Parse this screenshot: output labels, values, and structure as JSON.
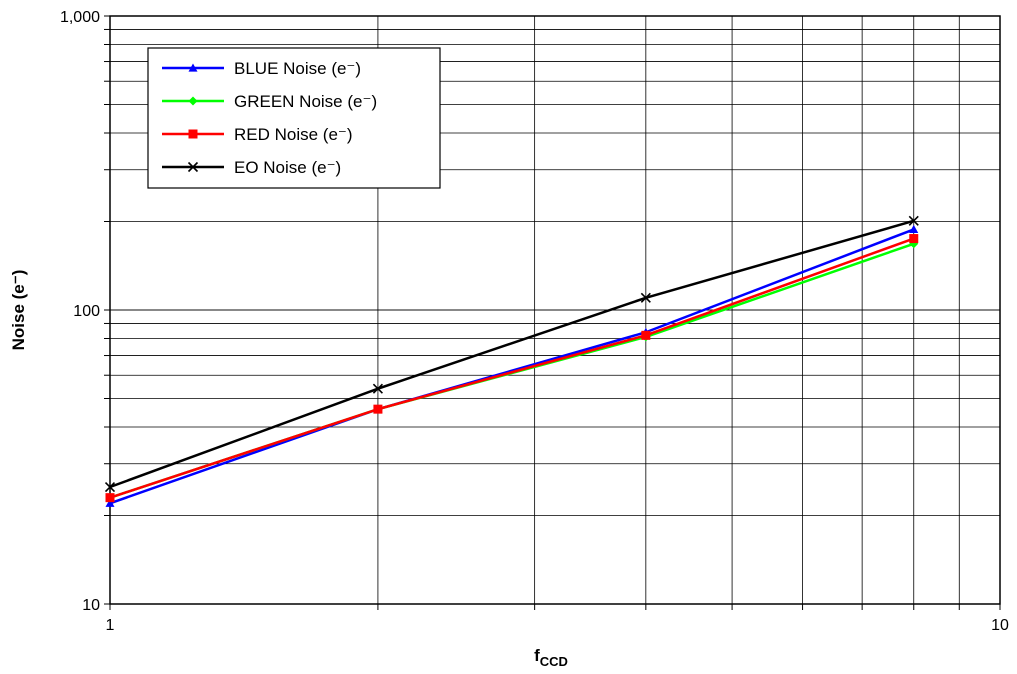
{
  "chart_data": {
    "type": "line",
    "title": "",
    "xlabel": "f",
    "xlabel_subscript": "CCD",
    "ylabel": "Noise (e⁻)",
    "x_scale": "log",
    "y_scale": "log",
    "xlim": [
      1,
      10
    ],
    "ylim": [
      10,
      1000
    ],
    "x_ticks": [
      1,
      10
    ],
    "x_tick_labels": [
      "1",
      "10"
    ],
    "y_ticks": [
      10,
      100,
      1000
    ],
    "y_tick_labels": [
      "10",
      "100",
      "1,000"
    ],
    "grid": true,
    "legend_position": "top-left",
    "x": [
      1,
      2,
      4,
      8
    ],
    "series": [
      {
        "name": "BLUE Noise (e⁻)",
        "values": [
          22,
          46,
          84,
          188
        ],
        "color": "#0000ff",
        "marker": "triangle"
      },
      {
        "name": "GREEN Noise (e⁻)",
        "values": [
          23,
          46,
          81,
          168
        ],
        "color": "#00ff00",
        "marker": "diamond"
      },
      {
        "name": "RED Noise (e⁻)",
        "values": [
          23,
          46,
          82,
          175
        ],
        "color": "#ff0000",
        "marker": "square"
      },
      {
        "name": "EO Noise (e⁻)",
        "values": [
          25,
          54,
          110,
          201
        ],
        "color": "#000000",
        "marker": "x"
      }
    ]
  }
}
